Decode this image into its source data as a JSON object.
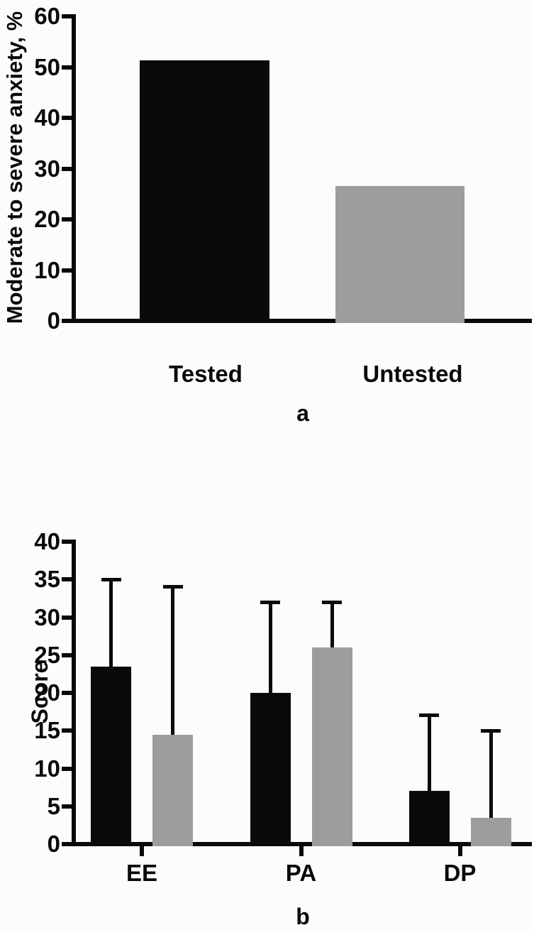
{
  "colors": {
    "bar_black": "#0a0a0a",
    "bar_gray": "#9d9d9d",
    "axis_ink": "#0a0a0a",
    "background": "#fcfcfc"
  },
  "chart_data": [
    {
      "type": "bar",
      "panel_label": "a",
      "title": "",
      "xlabel": "",
      "ylabel": "Moderate to severe anxiety, %",
      "categories": [
        "Tested",
        "Untested"
      ],
      "values": [
        51.3,
        26.6
      ],
      "bar_colors": [
        "#0a0a0a",
        "#9d9d9d"
      ],
      "ylim": [
        0,
        60
      ],
      "yticks": [
        0,
        10,
        20,
        30,
        40,
        50,
        60
      ],
      "grid": false,
      "legend": "none",
      "error_bars": "none"
    },
    {
      "type": "bar",
      "panel_label": "b",
      "title": "",
      "xlabel": "",
      "ylabel": "Score",
      "categories": [
        "EE",
        "PA",
        "DP"
      ],
      "series": [
        {
          "color_name": "black",
          "color": "#0a0a0a",
          "values": [
            23.5,
            20,
            7
          ],
          "error_top": [
            35,
            32,
            17
          ]
        },
        {
          "color_name": "gray",
          "color": "#9d9d9d",
          "values": [
            14.5,
            26,
            3.5
          ],
          "error_top": [
            34,
            32,
            15
          ]
        }
      ],
      "ylim": [
        0,
        40
      ],
      "yticks": [
        0,
        5,
        10,
        15,
        20,
        25,
        30,
        35,
        40
      ],
      "grid": false,
      "legend": "none",
      "error_bars": "upper-sd"
    }
  ]
}
